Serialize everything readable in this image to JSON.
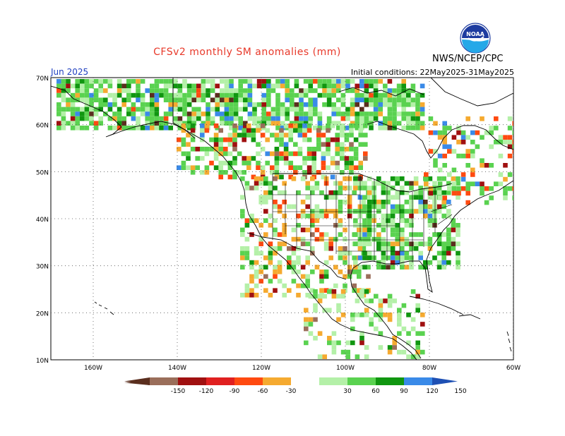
{
  "title": "CFSv2 monthly SM anomalies (mm)",
  "organization": "NWS/NCEP/CPC",
  "logo_text": "NOAA",
  "forecast_month": "Jun 2025",
  "initial_conditions": "Initial conditions: 22May2025-31May2025",
  "axes": {
    "lat_labels": [
      "70N",
      "60N",
      "50N",
      "40N",
      "30N",
      "20N",
      "10N"
    ],
    "lon_labels": [
      "160W",
      "140W",
      "120W",
      "100W",
      "80W",
      "60W"
    ]
  },
  "colorbar": {
    "labels": [
      "-150",
      "-120",
      "-90",
      "-60",
      "-30",
      "30",
      "60",
      "90",
      "120",
      "150"
    ],
    "colors": [
      "#5a2e1e",
      "#9a6e5a",
      "#a01010",
      "#e02020",
      "#ff4a10",
      "#f5aa30",
      "#ffffff",
      "#b4f0a8",
      "#5ad250",
      "#109610",
      "#3a8ae8",
      "#1e50b4"
    ]
  },
  "legend_colors": {
    "dry_dark": "#5a2e1e",
    "dry_brown": "#9a6e5a",
    "dry_red": "#a01010",
    "dry_orange": "#ff4a10",
    "dry_yellow": "#f5aa30",
    "wet_light": "#b4f0a8",
    "wet_mid": "#5ad250",
    "wet_dark": "#109610",
    "wet_blue": "#3a8ae8",
    "wet_navy": "#1e50b4"
  }
}
